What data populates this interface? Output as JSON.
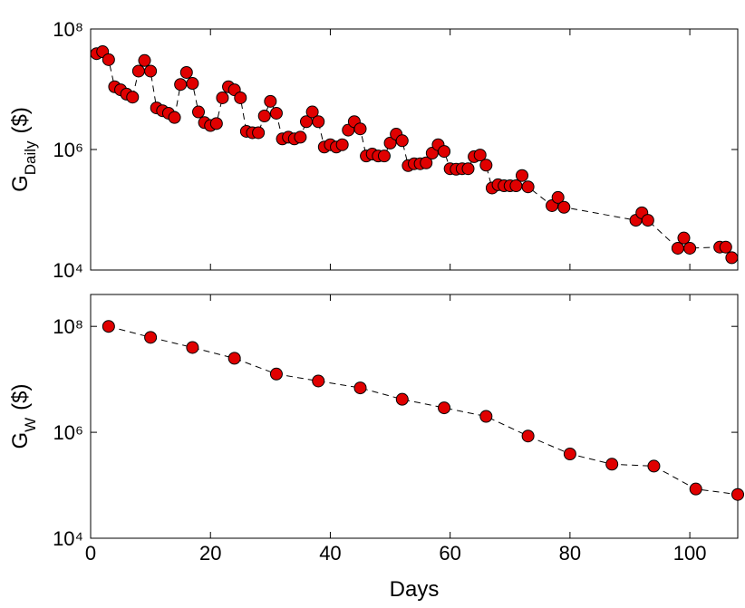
{
  "chart_data": [
    {
      "type": "line",
      "log_scale_y": true,
      "color": "#e00000",
      "marker": "circle",
      "line_style": "dashed",
      "ylabel": {
        "main": "G",
        "sub": "Daily",
        "unit": "($)"
      },
      "xlim": [
        0,
        108
      ],
      "ylim": [
        10000,
        100000000
      ],
      "yticks": [
        {
          "value": 10000,
          "label": "10⁴"
        },
        {
          "value": 1000000,
          "label": "10⁶"
        },
        {
          "value": 100000000,
          "label": "10⁸"
        }
      ],
      "x": [
        1,
        2,
        3,
        4,
        5,
        6,
        7,
        8,
        9,
        10,
        11,
        12,
        13,
        14,
        15,
        16,
        17,
        18,
        19,
        20,
        21,
        22,
        23,
        24,
        25,
        26,
        27,
        28,
        29,
        30,
        31,
        32,
        33,
        34,
        35,
        36,
        37,
        38,
        39,
        40,
        41,
        42,
        43,
        44,
        45,
        46,
        47,
        48,
        49,
        50,
        51,
        52,
        53,
        54,
        55,
        56,
        57,
        58,
        59,
        60,
        61,
        62,
        63,
        64,
        65,
        66,
        67,
        68,
        69,
        70,
        71,
        72,
        73,
        77,
        78,
        79,
        91,
        92,
        93,
        98,
        99,
        100,
        105,
        106,
        107
      ],
      "values": [
        39000000,
        42000000,
        31000000,
        11000000,
        9800000,
        8300000,
        7400000,
        20000000,
        30000000,
        20000000,
        4900000,
        4400000,
        4000000,
        3400000,
        12000000,
        19000000,
        12500000,
        4200000,
        2800000,
        2500000,
        2700000,
        7200000,
        11000000,
        9800000,
        7200000,
        2000000,
        1900000,
        1900000,
        3600000,
        6300000,
        4000000,
        1500000,
        1600000,
        1500000,
        1600000,
        2900000,
        4200000,
        2900000,
        1100000,
        1200000,
        1100000,
        1200000,
        2100000,
        2900000,
        2200000,
        780000,
        840000,
        780000,
        780000,
        1280000,
        1800000,
        1400000,
        540000,
        580000,
        580000,
        600000,
        870000,
        1200000,
        930000,
        480000,
        470000,
        480000,
        480000,
        760000,
        810000,
        550000,
        230000,
        260000,
        250000,
        250000,
        250000,
        370000,
        240000,
        117000,
        160000,
        110000,
        67000,
        89000,
        67000,
        23000,
        34000,
        23000,
        24000,
        24000,
        16000
      ]
    },
    {
      "type": "line",
      "log_scale_y": true,
      "color": "#e00000",
      "marker": "circle",
      "line_style": "dashed",
      "ylabel": {
        "main": "G",
        "sub": "W",
        "unit": "($)"
      },
      "xlabel": "Days",
      "xlim": [
        0,
        108
      ],
      "xticks": [
        0,
        20,
        40,
        60,
        80,
        100
      ],
      "ylim": [
        10000,
        400000000
      ],
      "yticks": [
        {
          "value": 10000,
          "label": "10⁴"
        },
        {
          "value": 1000000,
          "label": "10⁶"
        },
        {
          "value": 100000000,
          "label": "10⁸"
        }
      ],
      "x": [
        3,
        10,
        17,
        24,
        31,
        38,
        45,
        52,
        59,
        66,
        73,
        80,
        87,
        94,
        101,
        108
      ],
      "values": [
        100000000,
        62000000,
        40000000,
        25000000,
        12600000,
        9300000,
        6900000,
        4200000,
        2900000,
        2000000,
        850000,
        390000,
        250000,
        230000,
        85000,
        67000
      ]
    }
  ]
}
